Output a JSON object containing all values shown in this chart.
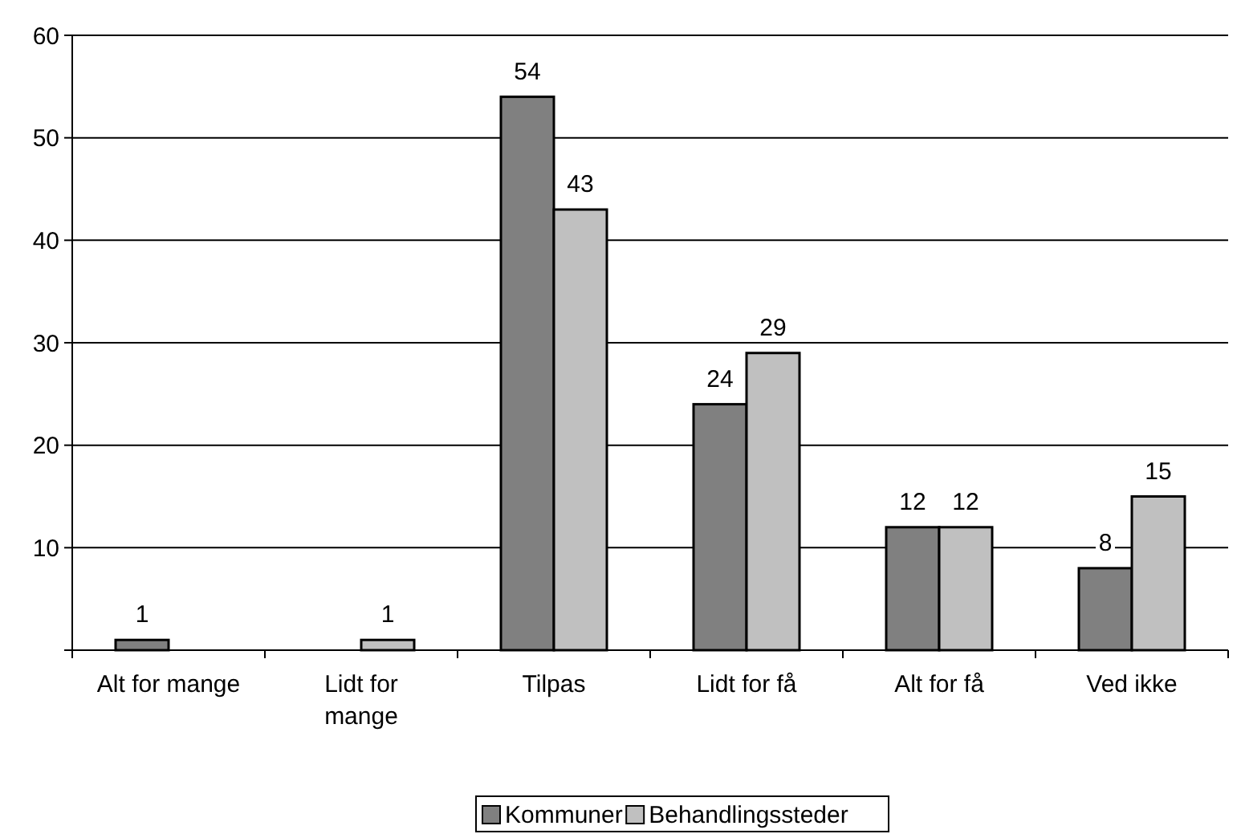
{
  "chart_data": {
    "type": "bar",
    "categories": [
      "Alt for mange",
      "Lidt for mange",
      "Tilpas",
      "Lidt for få",
      "Alt for få",
      "Ved ikke"
    ],
    "series": [
      {
        "name": "Kommuner",
        "color": "#808080",
        "values": [
          1,
          null,
          54,
          24,
          12,
          8
        ]
      },
      {
        "name": "Behandlingssteder",
        "color": "#c0c0c0",
        "values": [
          null,
          1,
          43,
          29,
          12,
          15
        ]
      }
    ],
    "ylim": [
      0,
      60
    ],
    "yticks": [
      {
        "value": 0,
        "label": null
      },
      10,
      20,
      30,
      40,
      50,
      60
    ],
    "grid": "y",
    "legend": "bottom",
    "data_labels": true
  }
}
